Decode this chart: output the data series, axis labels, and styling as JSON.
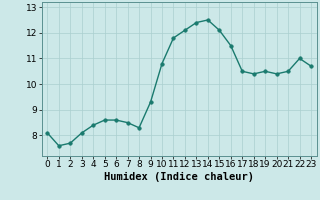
{
  "x": [
    0,
    1,
    2,
    3,
    4,
    5,
    6,
    7,
    8,
    9,
    10,
    11,
    12,
    13,
    14,
    15,
    16,
    17,
    18,
    19,
    20,
    21,
    22,
    23
  ],
  "y": [
    8.1,
    7.6,
    7.7,
    8.1,
    8.4,
    8.6,
    8.6,
    8.5,
    8.3,
    9.3,
    10.8,
    11.8,
    12.1,
    12.4,
    12.5,
    12.1,
    11.5,
    10.5,
    10.4,
    10.5,
    10.4,
    10.5,
    11.0,
    10.7
  ],
  "line_color": "#1a7a6e",
  "marker_color": "#1a7a6e",
  "bg_color": "#cce8e8",
  "grid_color": "#aacfcf",
  "xlabel": "Humidex (Indice chaleur)",
  "ylim": [
    7.2,
    13.2
  ],
  "xlim": [
    -0.5,
    23.5
  ],
  "yticks": [
    8,
    9,
    10,
    11,
    12,
    13
  ],
  "xticks": [
    0,
    1,
    2,
    3,
    4,
    5,
    6,
    7,
    8,
    9,
    10,
    11,
    12,
    13,
    14,
    15,
    16,
    17,
    18,
    19,
    20,
    21,
    22,
    23
  ],
  "xlabel_fontsize": 7.5,
  "tick_fontsize": 6.5,
  "line_width": 1.0,
  "marker_size": 2.5
}
